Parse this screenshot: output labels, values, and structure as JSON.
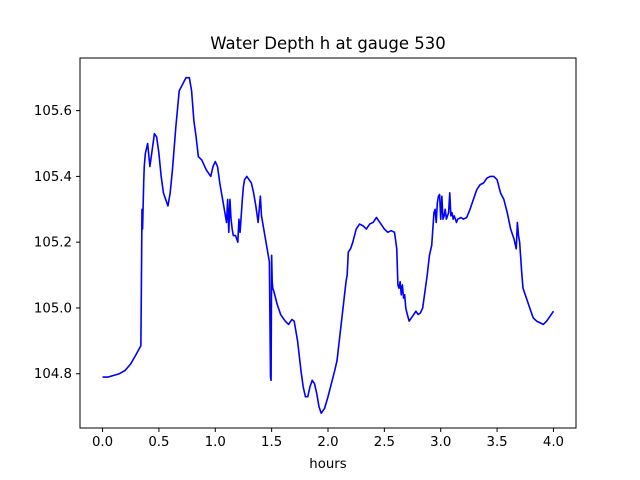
{
  "chart_data": {
    "type": "line",
    "title": "Water Depth h at gauge 530",
    "xlabel": "hours",
    "ylabel": "",
    "xlim": [
      -0.2,
      4.2
    ],
    "ylim": [
      104.635,
      105.76
    ],
    "xticks": [
      0.0,
      0.5,
      1.0,
      1.5,
      2.0,
      2.5,
      3.0,
      3.5,
      4.0
    ],
    "xtick_labels": [
      "0.0",
      "0.5",
      "1.0",
      "1.5",
      "2.0",
      "2.5",
      "3.0",
      "3.5",
      "4.0"
    ],
    "yticks": [
      104.8,
      105.0,
      105.2,
      105.4,
      105.6
    ],
    "ytick_labels": [
      "104.8",
      "105.0",
      "105.2",
      "105.4",
      "105.6"
    ],
    "grid": false,
    "legend": "none",
    "series": [
      {
        "color": "#0000ff",
        "x": [
          0.0,
          0.05,
          0.1,
          0.15,
          0.2,
          0.25,
          0.3,
          0.34,
          0.35,
          0.355,
          0.36,
          0.365,
          0.37,
          0.38,
          0.4,
          0.42,
          0.44,
          0.46,
          0.48,
          0.5,
          0.52,
          0.54,
          0.56,
          0.58,
          0.6,
          0.62,
          0.65,
          0.68,
          0.71,
          0.74,
          0.77,
          0.79,
          0.81,
          0.83,
          0.85,
          0.88,
          0.92,
          0.96,
          0.98,
          1.0,
          1.02,
          1.04,
          1.06,
          1.08,
          1.1,
          1.11,
          1.12,
          1.13,
          1.14,
          1.15,
          1.16,
          1.18,
          1.2,
          1.21,
          1.22,
          1.23,
          1.24,
          1.25,
          1.26,
          1.28,
          1.3,
          1.32,
          1.34,
          1.36,
          1.38,
          1.4,
          1.41,
          1.42,
          1.43,
          1.44,
          1.46,
          1.48,
          1.49,
          1.495,
          1.5,
          1.505,
          1.51,
          1.52,
          1.55,
          1.58,
          1.62,
          1.65,
          1.68,
          1.7,
          1.73,
          1.76,
          1.78,
          1.8,
          1.82,
          1.84,
          1.86,
          1.88,
          1.9,
          1.92,
          1.94,
          1.97,
          2.0,
          2.03,
          2.06,
          2.08,
          2.1,
          2.12,
          2.14,
          2.16,
          2.17,
          2.18,
          2.2,
          2.22,
          2.25,
          2.28,
          2.31,
          2.34,
          2.37,
          2.4,
          2.43,
          2.46,
          2.5,
          2.53,
          2.56,
          2.59,
          2.61,
          2.62,
          2.63,
          2.64,
          2.65,
          2.66,
          2.67,
          2.68,
          2.69,
          2.7,
          2.72,
          2.74,
          2.76,
          2.78,
          2.8,
          2.82,
          2.84,
          2.86,
          2.88,
          2.9,
          2.92,
          2.94,
          2.95,
          2.96,
          2.97,
          2.98,
          2.99,
          3.0,
          3.01,
          3.02,
          3.03,
          3.04,
          3.05,
          3.06,
          3.07,
          3.08,
          3.09,
          3.1,
          3.11,
          3.12,
          3.13,
          3.14,
          3.15,
          3.18,
          3.2,
          3.23,
          3.26,
          3.29,
          3.32,
          3.35,
          3.38,
          3.41,
          3.44,
          3.47,
          3.5,
          3.53,
          3.56,
          3.59,
          3.62,
          3.65,
          3.67,
          3.68,
          3.69,
          3.7,
          3.72,
          3.73,
          3.76,
          3.79,
          3.82,
          3.85,
          3.88,
          3.91,
          3.94,
          3.97,
          4.0
        ],
        "y": [
          104.79,
          104.79,
          104.795,
          104.8,
          104.81,
          104.83,
          104.86,
          104.885,
          105.3,
          105.24,
          105.31,
          105.38,
          105.43,
          105.47,
          105.5,
          105.43,
          105.48,
          105.53,
          105.52,
          105.47,
          105.4,
          105.35,
          105.33,
          105.31,
          105.35,
          105.42,
          105.55,
          105.66,
          105.68,
          105.7,
          105.7,
          105.66,
          105.57,
          105.52,
          105.46,
          105.45,
          105.42,
          105.4,
          105.43,
          105.445,
          105.43,
          105.38,
          105.34,
          105.3,
          105.26,
          105.33,
          105.23,
          105.33,
          105.27,
          105.24,
          105.22,
          105.22,
          105.2,
          105.27,
          105.23,
          105.28,
          105.33,
          105.37,
          105.39,
          105.4,
          105.39,
          105.38,
          105.35,
          105.31,
          105.26,
          105.34,
          105.28,
          105.26,
          105.24,
          105.22,
          105.18,
          105.14,
          104.79,
          104.78,
          105.16,
          105.08,
          105.06,
          105.05,
          105.01,
          104.98,
          104.96,
          104.95,
          104.965,
          104.96,
          104.9,
          104.81,
          104.76,
          104.73,
          104.73,
          104.76,
          104.78,
          104.77,
          104.74,
          104.7,
          104.68,
          104.695,
          104.73,
          104.77,
          104.81,
          104.84,
          104.9,
          104.96,
          105.02,
          105.08,
          105.1,
          105.17,
          105.18,
          105.2,
          105.24,
          105.255,
          105.25,
          105.24,
          105.255,
          105.26,
          105.275,
          105.26,
          105.24,
          105.23,
          105.235,
          105.23,
          105.18,
          105.07,
          105.06,
          105.08,
          105.04,
          105.07,
          105.03,
          105.04,
          105.0,
          104.985,
          104.96,
          104.97,
          104.98,
          104.99,
          104.98,
          104.985,
          105.0,
          105.05,
          105.1,
          105.16,
          105.19,
          105.29,
          105.3,
          105.26,
          105.32,
          105.34,
          105.345,
          105.27,
          105.34,
          105.27,
          105.28,
          105.3,
          105.27,
          105.28,
          105.29,
          105.35,
          105.28,
          105.29,
          105.27,
          105.28,
          105.27,
          105.26,
          105.27,
          105.275,
          105.27,
          105.275,
          105.3,
          105.33,
          105.36,
          105.375,
          105.38,
          105.395,
          105.4,
          105.4,
          105.39,
          105.35,
          105.33,
          105.29,
          105.24,
          105.21,
          105.18,
          105.26,
          105.22,
          105.2,
          105.1,
          105.06,
          105.03,
          105.0,
          104.97,
          104.96,
          104.955,
          104.95,
          104.96,
          104.975,
          104.99
        ]
      }
    ]
  }
}
